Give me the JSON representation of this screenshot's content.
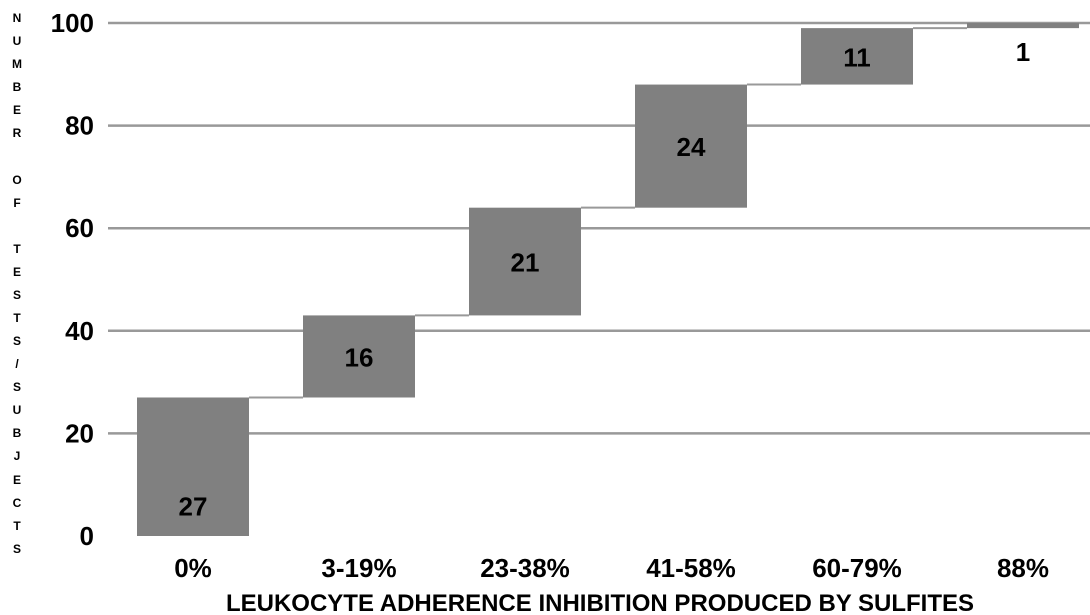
{
  "chart_data": {
    "type": "bar",
    "subtype": "waterfall",
    "title": "",
    "xlabel": "LEUKOCYTE ADHERENCE INHIBITION PRODUCED BY SULFITES",
    "ylabel": "NUMBER OF TESTS/SUBJECTS",
    "categories": [
      "0%",
      "3-19%",
      "23-38%",
      "41-58%",
      "60-79%",
      "88%"
    ],
    "values": [
      27,
      16,
      21,
      24,
      11,
      1
    ],
    "data_labels": [
      "27",
      "16",
      "21",
      "24",
      "11",
      "1"
    ],
    "ylim": [
      0,
      100
    ],
    "yticks": [
      "0",
      "20",
      "40",
      "60",
      "80",
      "100"
    ],
    "grid": true,
    "bar_color": "#808080",
    "grid_color": "#999999",
    "connector_color": "#999999"
  }
}
